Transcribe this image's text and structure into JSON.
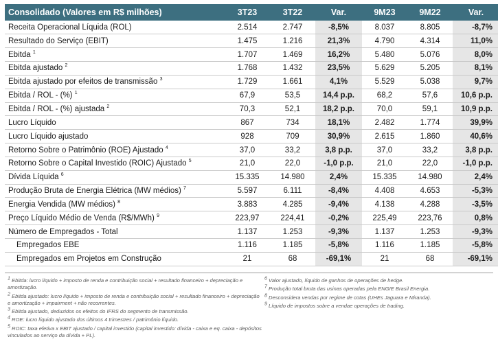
{
  "header": {
    "title": "Consolidado (Valores em R$ milhões)",
    "cols": [
      "3T23",
      "3T22",
      "Var.",
      "9M23",
      "9M22",
      "Var."
    ]
  },
  "rows": [
    {
      "label": "Receita Operacional Líquida (ROL)",
      "sup": "",
      "v": [
        "2.514",
        "2.747",
        "-8,5%",
        "8.037",
        "8.805",
        "-8,7%"
      ]
    },
    {
      "label": "Resultado do Serviço (EBIT)",
      "sup": "",
      "v": [
        "1.475",
        "1.216",
        "21,3%",
        "4.790",
        "4.314",
        "11,0%"
      ]
    },
    {
      "label": "Ebitda",
      "sup": "1",
      "v": [
        "1.707",
        "1.469",
        "16,2%",
        "5.480",
        "5.076",
        "8,0%"
      ]
    },
    {
      "label": "Ebitda ajustado",
      "sup": "2",
      "v": [
        "1.768",
        "1.432",
        "23,5%",
        "5.629",
        "5.205",
        "8,1%"
      ]
    },
    {
      "label": "Ebitda ajustado por efeitos de transmissão",
      "sup": "3",
      "v": [
        "1.729",
        "1.661",
        "4,1%",
        "5.529",
        "5.038",
        "9,7%"
      ]
    },
    {
      "label": "Ebitda / ROL - (%)",
      "sup": "1",
      "v": [
        "67,9",
        "53,5",
        "14,4 p.p.",
        "68,2",
        "57,6",
        "10,6 p.p."
      ]
    },
    {
      "label": "Ebitda / ROL - (%) ajustada",
      "sup": "2",
      "v": [
        "70,3",
        "52,1",
        "18,2 p.p.",
        "70,0",
        "59,1",
        "10,9 p.p."
      ]
    },
    {
      "label": "Lucro Líquido",
      "sup": "",
      "v": [
        "867",
        "734",
        "18,1%",
        "2.482",
        "1.774",
        "39,9%"
      ]
    },
    {
      "label": "Lucro Líquido ajustado",
      "sup": "",
      "v": [
        "928",
        "709",
        "30,9%",
        "2.615",
        "1.860",
        "40,6%"
      ]
    },
    {
      "label": "Retorno Sobre o Patrimônio (ROE) Ajustado",
      "sup": "4",
      "v": [
        "37,0",
        "33,2",
        "3,8 p.p.",
        "37,0",
        "33,2",
        "3,8 p.p."
      ]
    },
    {
      "label": "Retorno Sobre o Capital Investido (ROIC) Ajustado",
      "sup": "5",
      "v": [
        "21,0",
        "22,0",
        "-1,0 p.p.",
        "21,0",
        "22,0",
        "-1,0 p.p."
      ]
    },
    {
      "label": "Dívida Líquida",
      "sup": "6",
      "v": [
        "15.335",
        "14.980",
        "2,4%",
        "15.335",
        "14.980",
        "2,4%"
      ]
    },
    {
      "label": "Produção Bruta de Energia Elétrica (MW médios)",
      "sup": "7",
      "v": [
        "5.597",
        "6.111",
        "-8,4%",
        "4.408",
        "4.653",
        "-5,3%"
      ]
    },
    {
      "label": "Energia Vendida (MW médios)",
      "sup": "8",
      "v": [
        "3.883",
        "4.285",
        "-9,4%",
        "4.138",
        "4.288",
        "-3,5%"
      ]
    },
    {
      "label": "Preço Líquido Médio de Venda (R$/MWh)",
      "sup": "9",
      "v": [
        "223,97",
        "224,41",
        "-0,2%",
        "225,49",
        "223,76",
        "0,8%"
      ]
    },
    {
      "label": "Número de Empregados - Total",
      "sup": "",
      "v": [
        "1.137",
        "1.253",
        "-9,3%",
        "1.137",
        "1.253",
        "-9,3%"
      ]
    },
    {
      "label": "Empregados EBE",
      "sup": "",
      "sub": true,
      "v": [
        "1.116",
        "1.185",
        "-5,8%",
        "1.116",
        "1.185",
        "-5,8%"
      ]
    },
    {
      "label": "Empregados em Projetos em Construção",
      "sup": "",
      "sub": true,
      "v": [
        "21",
        "68",
        "-69,1%",
        "21",
        "68",
        "-69,1%"
      ]
    }
  ],
  "notes_left": [
    {
      "n": "1",
      "text": "Ebitda: lucro líquido + imposto de renda e contribuição social + resultado financeiro + depreciação e amortização."
    },
    {
      "n": "2",
      "text": "Ebitda ajustado: lucro líquido + imposto de renda e contribuição social + resultado financeiro + depreciação e amortização + impairment + não recorrentes."
    },
    {
      "n": "3",
      "text": "Ebitda ajustado, deduzidos os efeitos do IFRS do segmento de transmissão."
    },
    {
      "n": "4",
      "text": "ROE: lucro líquido ajustado dos últimos 4 trimestres / patrimônio líquido."
    },
    {
      "n": "5",
      "text": "ROIC: taxa efetiva x EBIT ajustado / capital investido (capital investido: dívida - caixa e eq. caixa - depósitos vinculados ao serviço da dívida + PL)."
    }
  ],
  "notes_right": [
    {
      "n": "6",
      "text": "Valor ajustado, líquido de ganhos de operações de hedge."
    },
    {
      "n": "7",
      "text": "Produção total bruta das usinas operadas pela ENGIE Brasil Energia."
    },
    {
      "n": "8",
      "text": "Desconsidera vendas por regime de cotas (UHEs Jaguara e Miranda)."
    },
    {
      "n": "9",
      "text": "Líquido de impostos sobre a vendae operações de trading."
    }
  ]
}
